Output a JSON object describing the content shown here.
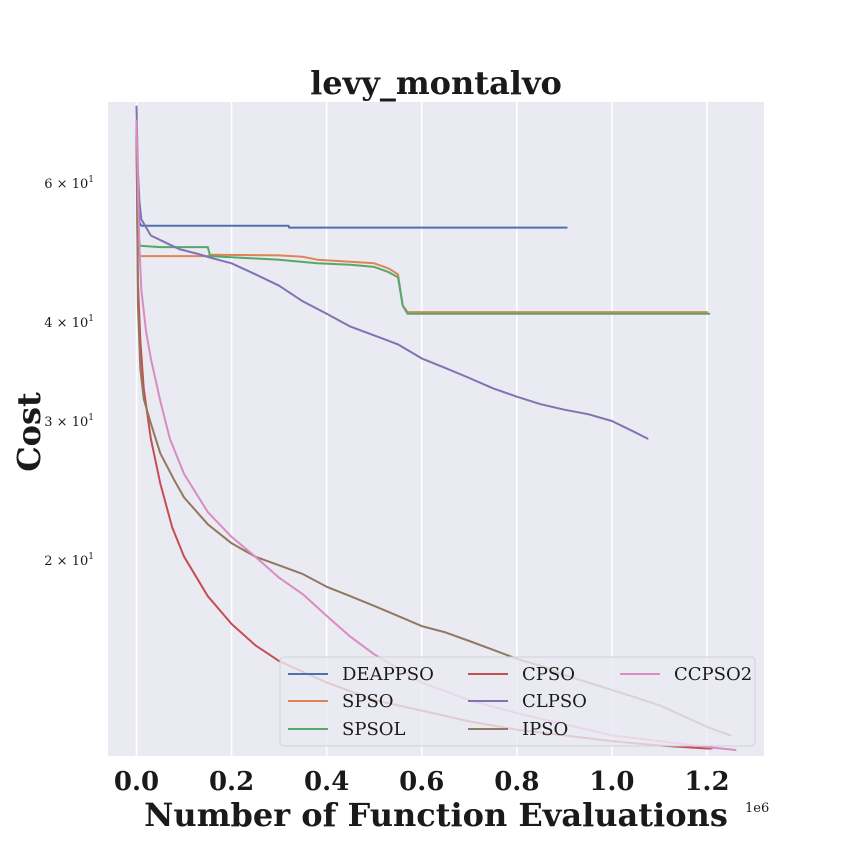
{
  "chart_data": {
    "type": "line",
    "title": "levy_montalvo",
    "xlabel": "Number of Function Evaluations",
    "ylabel": "Cost",
    "x_offset_text": "1e6",
    "xlim": [
      -0.06,
      1.32
    ],
    "ylim": [
      11.3,
      76.0
    ],
    "yscale": "log",
    "grid": true,
    "background": "#EAEAF2",
    "legend_position": "lower-right",
    "xticks": [
      {
        "value": 0.0,
        "label": "0.0"
      },
      {
        "value": 0.2,
        "label": "0.2"
      },
      {
        "value": 0.4,
        "label": "0.4"
      },
      {
        "value": 0.6,
        "label": "0.6"
      },
      {
        "value": 0.8,
        "label": "0.8"
      },
      {
        "value": 1.0,
        "label": "1.0"
      },
      {
        "value": 1.2,
        "label": "1.2"
      }
    ],
    "yticks": [
      {
        "value": 20,
        "base": "2 × 10",
        "exp": "1"
      },
      {
        "value": 30,
        "base": "3 × 10",
        "exp": "1"
      },
      {
        "value": 40,
        "base": "4 × 10",
        "exp": "1"
      },
      {
        "value": 60,
        "base": "6 × 10",
        "exp": "1"
      }
    ],
    "series": [
      {
        "name": "DEAPPSO",
        "color": "#4C72B0",
        "x": [
          0,
          0.003,
          0.006,
          0.01,
          0.05,
          0.15,
          0.32,
          0.321,
          0.5,
          0.7,
          0.905
        ],
        "y": [
          72,
          58,
          53.5,
          53,
          53,
          53,
          53,
          52.7,
          52.7,
          52.7,
          52.7
        ]
      },
      {
        "name": "SPSO",
        "color": "#DD8452",
        "x": [
          0,
          0.002,
          0.004,
          0.007,
          0.05,
          0.15,
          0.155,
          0.3,
          0.35,
          0.38,
          0.45,
          0.5,
          0.53,
          0.55,
          0.56,
          0.57,
          0.7,
          0.9,
          1.1,
          1.2
        ],
        "y": [
          70,
          56,
          50,
          48.5,
          48.5,
          48.5,
          48.7,
          48.6,
          48.4,
          48.0,
          47.7,
          47.5,
          46.8,
          46.0,
          42.0,
          41.2,
          41.2,
          41.2,
          41.2,
          41.2
        ]
      },
      {
        "name": "SPSOL",
        "color": "#55A868",
        "x": [
          0,
          0.002,
          0.004,
          0.007,
          0.05,
          0.1,
          0.15,
          0.155,
          0.3,
          0.38,
          0.45,
          0.5,
          0.53,
          0.55,
          0.56,
          0.57,
          0.7,
          0.9,
          1.1,
          1.205
        ],
        "y": [
          72,
          58,
          52,
          50,
          49.8,
          49.8,
          49.8,
          48.5,
          48.0,
          47.5,
          47.3,
          47.0,
          46.3,
          45.6,
          42.0,
          41.0,
          41.0,
          41.0,
          41.0,
          41.0
        ]
      },
      {
        "name": "CPSO",
        "color": "#C44E52",
        "x": [
          0,
          0.003,
          0.008,
          0.015,
          0.03,
          0.05,
          0.075,
          0.1,
          0.15,
          0.2,
          0.25,
          0.3,
          0.4,
          0.5,
          0.6,
          0.7,
          0.8,
          0.9,
          1.0,
          1.1,
          1.2,
          1.21
        ],
        "y": [
          70,
          45,
          38,
          33,
          28.5,
          25,
          22,
          20.2,
          18,
          16.6,
          15.6,
          14.9,
          14.0,
          13.3,
          12.9,
          12.5,
          12.2,
          12.0,
          11.8,
          11.65,
          11.55,
          11.55
        ]
      },
      {
        "name": "CLPSO",
        "color": "#8172B3",
        "x": [
          0,
          0.003,
          0.006,
          0.01,
          0.03,
          0.06,
          0.09,
          0.13,
          0.16,
          0.2,
          0.25,
          0.3,
          0.35,
          0.4,
          0.45,
          0.5,
          0.55,
          0.6,
          0.65,
          0.7,
          0.75,
          0.8,
          0.85,
          0.9,
          0.95,
          1.0,
          1.05,
          1.075
        ],
        "y": [
          75,
          62,
          57,
          54,
          51.5,
          50.5,
          49.5,
          48.8,
          48.2,
          47.5,
          46,
          44.5,
          42.5,
          41,
          39.5,
          38.5,
          37.5,
          36,
          35,
          34,
          33,
          32.2,
          31.5,
          31,
          30.6,
          30,
          29.0,
          28.5
        ]
      },
      {
        "name": "IPSO",
        "color": "#937860",
        "x": [
          0,
          0.003,
          0.008,
          0.015,
          0.03,
          0.05,
          0.08,
          0.1,
          0.15,
          0.2,
          0.25,
          0.3,
          0.35,
          0.4,
          0.45,
          0.5,
          0.55,
          0.6,
          0.65,
          0.7,
          0.75,
          0.8,
          0.85,
          0.9,
          0.95,
          1.0,
          1.05,
          1.1,
          1.15,
          1.2,
          1.25
        ],
        "y": [
          70,
          42,
          35,
          32,
          29.8,
          27.3,
          25.2,
          24,
          22.2,
          21,
          20.2,
          19.7,
          19.2,
          18.5,
          18.0,
          17.5,
          17.0,
          16.5,
          16.2,
          15.8,
          15.4,
          15.0,
          14.7,
          14.3,
          14.0,
          13.7,
          13.4,
          13.1,
          12.7,
          12.3,
          12.0
        ]
      },
      {
        "name": "CCPSO2",
        "color": "#DA8BC3",
        "x": [
          0,
          0.003,
          0.006,
          0.01,
          0.02,
          0.03,
          0.05,
          0.07,
          0.1,
          0.15,
          0.2,
          0.25,
          0.3,
          0.35,
          0.4,
          0.45,
          0.5,
          0.6,
          0.7,
          0.8,
          0.9,
          1.0,
          1.1,
          1.2,
          1.26
        ],
        "y": [
          72,
          60,
          50,
          44,
          39,
          36,
          31.8,
          28.5,
          25.7,
          23,
          21.4,
          20.2,
          19.0,
          18.1,
          17.0,
          16.0,
          15.2,
          14.0,
          13.3,
          12.8,
          12.4,
          12.0,
          11.8,
          11.6,
          11.5
        ]
      }
    ]
  }
}
